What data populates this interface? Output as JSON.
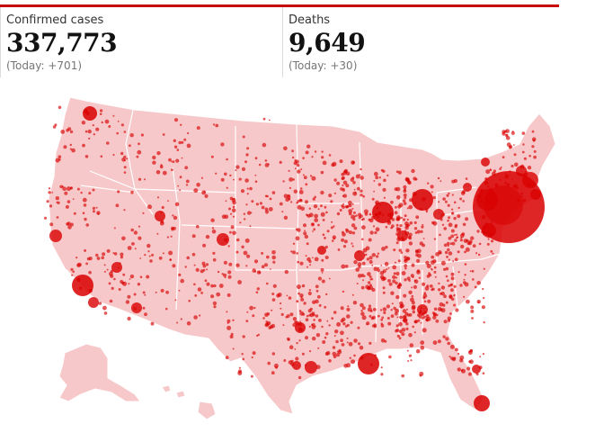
{
  "stats": {
    "cases": {
      "label": "Confirmed cases",
      "value": "337,773",
      "today": "(Today: +701)"
    },
    "deaths": {
      "label": "Deaths",
      "value": "9,649",
      "today": "(Today: +30)"
    }
  },
  "colors": {
    "accent": "#c70000",
    "land": "#f7c8c9",
    "borders": "#ffffff",
    "bubble": "#d90000"
  }
}
